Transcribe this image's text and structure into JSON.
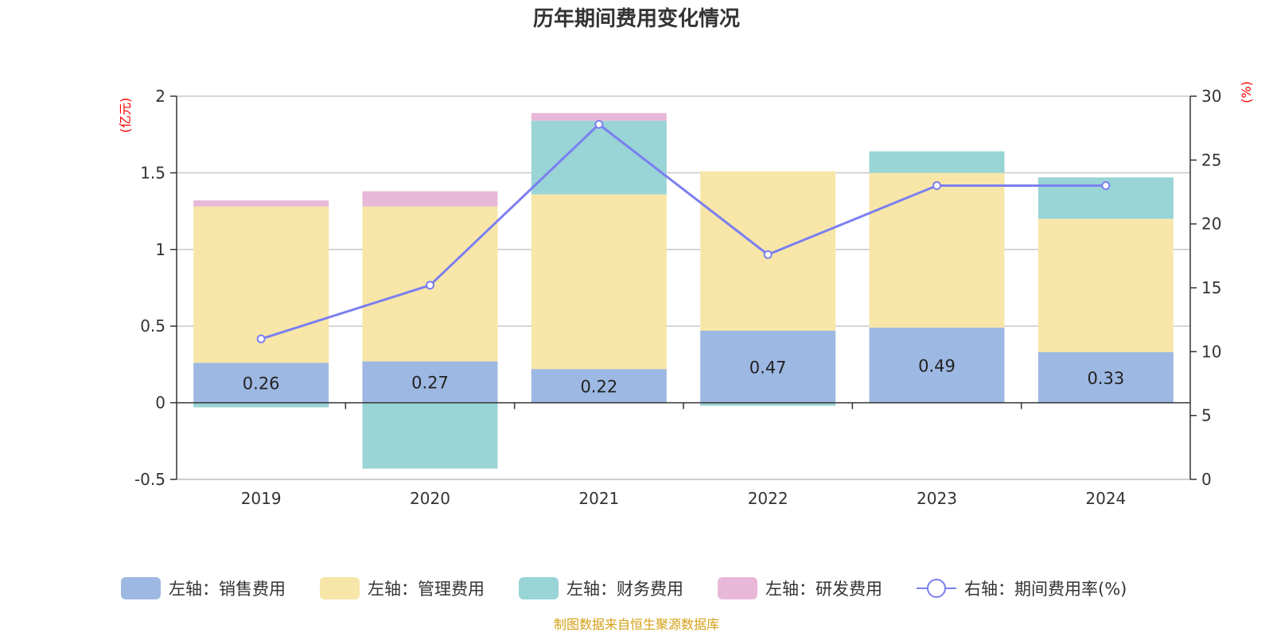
{
  "chart_data": {
    "type": "bar",
    "title": "历年期间费用变化情况",
    "categories": [
      "2019",
      "2020",
      "2021",
      "2022",
      "2023",
      "2024"
    ],
    "stacked": true,
    "left_axis": {
      "unit_label": "(亿元)",
      "min": -0.5,
      "max": 2,
      "ticks": [
        -0.5,
        0,
        0.5,
        1,
        1.5,
        2
      ],
      "tick_labels": [
        "-0.5",
        "0",
        "0.5",
        "1",
        "1.5",
        "2"
      ]
    },
    "right_axis": {
      "unit_label": "(%)",
      "min": 0,
      "max": 30,
      "ticks": [
        0,
        5,
        10,
        15,
        20,
        25,
        30
      ],
      "tick_labels": [
        "0",
        "5",
        "10",
        "15",
        "20",
        "25",
        "30"
      ]
    },
    "series": [
      {
        "name": "左轴：销售费用",
        "axis": "left",
        "color": "#9db8e2",
        "values": [
          0.26,
          0.27,
          0.22,
          0.47,
          0.49,
          0.33
        ],
        "labels": [
          "0.26",
          "0.27",
          "0.22",
          "0.47",
          "0.49",
          "0.33"
        ]
      },
      {
        "name": "左轴：管理费用",
        "axis": "left",
        "color": "#f7e6a8",
        "values": [
          1.02,
          1.01,
          1.14,
          1.04,
          1.01,
          0.87
        ]
      },
      {
        "name": "左轴：财务费用",
        "axis": "left",
        "color": "#99d4d6",
        "values": [
          -0.03,
          -0.43,
          0.48,
          -0.02,
          0.14,
          0.27
        ]
      },
      {
        "name": "左轴：研发费用",
        "axis": "left",
        "color": "#e8b8d9",
        "values": [
          0.04,
          0.1,
          0.05,
          0,
          0,
          0
        ]
      },
      {
        "name": "右轴：期间费用率(%)",
        "axis": "right",
        "type": "line",
        "color": "#7b7ff0",
        "values": [
          11.0,
          15.2,
          27.8,
          17.6,
          23.0,
          23.0
        ]
      }
    ],
    "legend_position": "bottom",
    "source": "制图数据来自恒生聚源数据库"
  }
}
